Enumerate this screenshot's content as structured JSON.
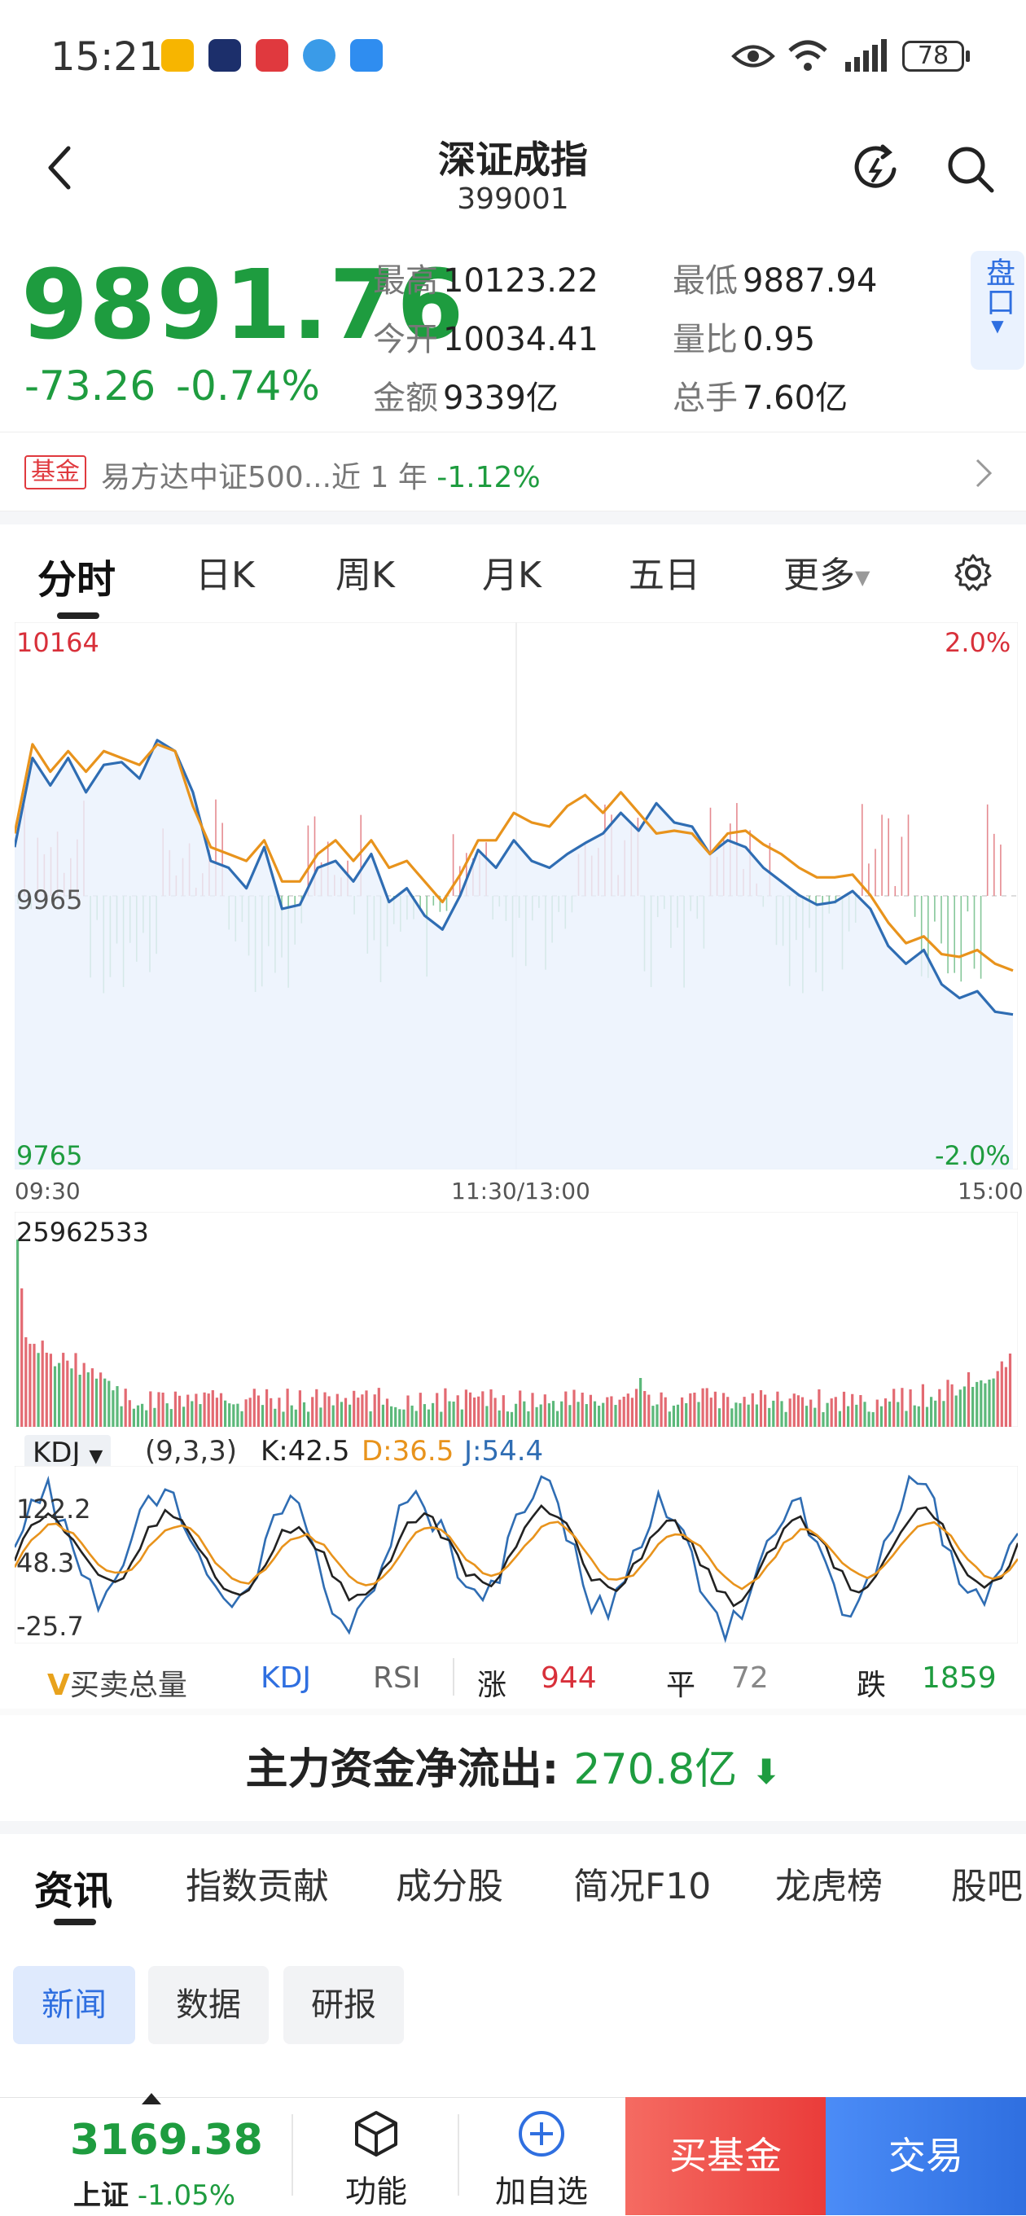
{
  "status_bar": {
    "time": "15:21",
    "battery": "78"
  },
  "header": {
    "title": "深证成指",
    "code": "399001"
  },
  "quote": {
    "price": "9891.76",
    "change": "-73.26",
    "change_pct": "-0.74%",
    "stats": [
      {
        "label": "最高",
        "value": "10123.22"
      },
      {
        "label": "最低",
        "value": "9887.94"
      },
      {
        "label": "今开",
        "value": "10034.41"
      },
      {
        "label": "量比",
        "value": "0.95"
      },
      {
        "label": "金额",
        "value": "9339亿"
      },
      {
        "label": "总手",
        "value": "7.60亿"
      }
    ],
    "pankou_label": "盘口"
  },
  "fund": {
    "tag": "基金",
    "text": "易方达中证500...近 1 年",
    "pct": "-1.12%"
  },
  "chart_tabs": [
    "分时",
    "日K",
    "周K",
    "月K",
    "五日",
    "更多"
  ],
  "chart_data": {
    "type": "line",
    "y_top": "10164",
    "y_mid": "9965",
    "y_bottom": "9765",
    "pct_top": "2.0%",
    "pct_bottom": "-2.0%",
    "x_labels": [
      "09:30",
      "11:30/13:00",
      "15:00"
    ],
    "ylim": [
      9765,
      10164
    ],
    "series": [
      {
        "color": "#2f6db3",
        "values": [
          10000,
          10065,
          10045,
          10065,
          10040,
          10060,
          10062,
          10050,
          10078,
          10070,
          10040,
          9990,
          9985,
          9970,
          10000,
          9955,
          9958,
          9985,
          9990,
          9975,
          9995,
          9960,
          9970,
          9950,
          9940,
          9965,
          9998,
          9985,
          10005,
          9990,
          9985,
          9995,
          10003,
          10010,
          10025,
          10012,
          10032,
          10018,
          10015,
          9995,
          10005,
          10000,
          9985,
          9975,
          9965,
          9958,
          9960,
          9968,
          9955,
          9928,
          9915,
          9925,
          9900,
          9890,
          9895,
          9880,
          9878
        ]
      },
      {
        "color": "#e8931c",
        "values": [
          10010,
          10075,
          10055,
          10070,
          10055,
          10070,
          10065,
          10060,
          10075,
          10070,
          10030,
          10000,
          9995,
          9990,
          10005,
          9975,
          9975,
          9995,
          10005,
          9990,
          10005,
          9985,
          9990,
          9975,
          9960,
          9980,
          10005,
          10005,
          10025,
          10018,
          10015,
          10030,
          10038,
          10025,
          10040,
          10025,
          10010,
          10012,
          10010,
          9995,
          10010,
          10012,
          10002,
          9995,
          9985,
          9978,
          9978,
          9980,
          9965,
          9945,
          9930,
          9935,
          9922,
          9920,
          9925,
          9915,
          9910
        ]
      }
    ],
    "volume_max_label": "25962533",
    "kdj": {
      "name": "KDJ",
      "params": "(9,3,3)",
      "k": "K:42.5",
      "d": "D:36.5",
      "j": "J:54.4",
      "levels": [
        "122.2",
        "48.3",
        "-25.7"
      ]
    }
  },
  "indicator_tabs": [
    "买卖总量",
    "KDJ",
    "RSI"
  ],
  "breadth": {
    "up_label": "涨",
    "up": "944",
    "flat_label": "平",
    "flat": "72",
    "down_label": "跌",
    "down": "1859"
  },
  "money_flow": {
    "label": "主力资金净流出:",
    "value": "270.8亿"
  },
  "news_tabs": [
    "资讯",
    "指数贡献",
    "成分股",
    "简况F10",
    "龙虎榜",
    "股吧"
  ],
  "news_chips": [
    "新闻",
    "数据",
    "研报"
  ],
  "bottom": {
    "index_value": "3169.38",
    "index_name": "上证",
    "index_pct": "-1.05%",
    "func_label": "功能",
    "add_label": "加自选",
    "buy_label": "买基金",
    "trade_label": "交易"
  }
}
